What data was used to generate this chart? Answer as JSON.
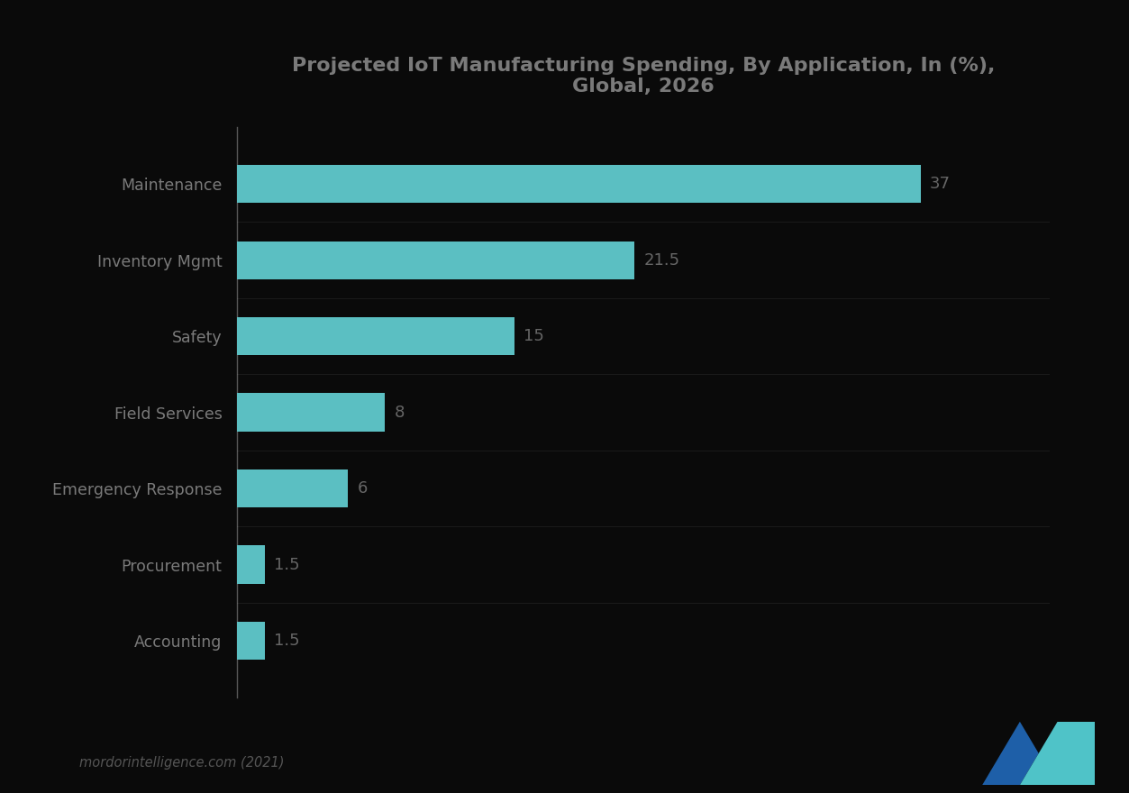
{
  "title_line1": "Projected IoT Manufacturing Spending, By Application, In (%),",
  "title_line2": "Global, 2026",
  "categories": [
    "Maintenance",
    "Inventory Mgmt",
    "Safety",
    "Field Services",
    "Emergency Response",
    "Procurement",
    "Accounting"
  ],
  "values": [
    37,
    21.5,
    15,
    8,
    6,
    1.5,
    1.5
  ],
  "bar_color": "#5BBFC2",
  "background_color": "#0A0A0A",
  "text_color": "#7A7A7A",
  "title_color": "#7A7A7A",
  "value_color": "#666666",
  "bar_height": 0.5,
  "xlim": [
    0,
    44
  ],
  "value_labels": [
    "37",
    "21.5",
    "15",
    "8",
    "6",
    "1.5",
    "1.5"
  ],
  "footer_text": "mordorintelligence.com (2021)",
  "separator_color": "#1A1A1A",
  "spine_color": "#CCCCCC"
}
